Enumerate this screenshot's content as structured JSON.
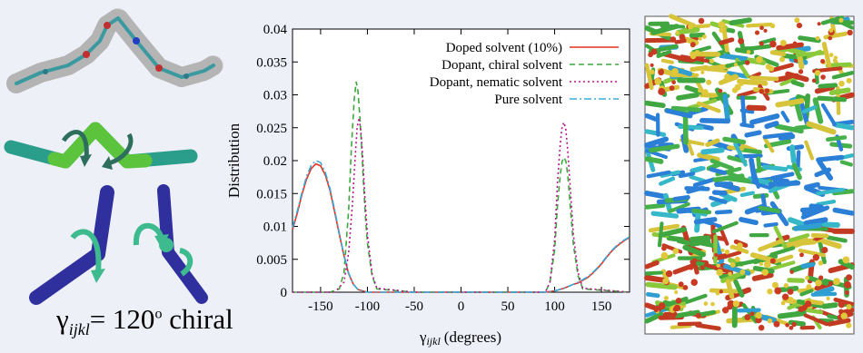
{
  "caption": {
    "gamma": "γ",
    "subscript": "ijkl",
    "equals": "= 120",
    "degree": "o",
    "word": "chiral"
  },
  "colors": {
    "molecule_green": "#5cc43c",
    "molecule_teal": "#2a9e8a",
    "chiral_blue": "#2f2f9e",
    "arrow_green": "#3dbb8e"
  },
  "chart_data": {
    "type": "line",
    "xlabel_main": "γ",
    "xlabel_sub": "ijkl",
    "xlabel_unit": "(degrees)",
    "ylabel": "Distribution",
    "xlim": [
      -180,
      180
    ],
    "ylim": [
      0,
      0.04
    ],
    "xticks": [
      -150,
      -100,
      -50,
      0,
      50,
      100,
      150
    ],
    "yticks": [
      0,
      0.005,
      0.01,
      0.015,
      0.02,
      0.025,
      0.03,
      0.035,
      0.04
    ],
    "yticklabels": [
      "0",
      "0.005",
      "0.01",
      "0.015",
      "0.02",
      "0.025",
      "0.03",
      "0.035",
      "0.04"
    ],
    "legend_position": "top-right",
    "series": [
      {
        "name": "Doped solvent (10%)",
        "color": "#e4321f",
        "dash": "",
        "x": [
          -180,
          -175,
          -170,
          -165,
          -160,
          -155,
          -150,
          -145,
          -140,
          -135,
          -130,
          -125,
          -120,
          -115,
          -110,
          -100,
          -50,
          0,
          50,
          90,
          95,
          100,
          105,
          110,
          115,
          120,
          125,
          130,
          135,
          140,
          145,
          150,
          155,
          160,
          165,
          170,
          175,
          180
        ],
        "y": [
          0.0095,
          0.012,
          0.0148,
          0.0172,
          0.0188,
          0.0195,
          0.0192,
          0.0178,
          0.0155,
          0.0122,
          0.0088,
          0.0055,
          0.0028,
          0.0012,
          0.0004,
          0,
          0,
          0,
          0,
          0,
          0.0001,
          0.0002,
          0.0004,
          0.0006,
          0.0009,
          0.0012,
          0.0014,
          0.0018,
          0.0022,
          0.0028,
          0.0035,
          0.0043,
          0.0052,
          0.0061,
          0.0068,
          0.0074,
          0.0079,
          0.0083
        ]
      },
      {
        "name": "Dopant, chiral solvent",
        "color": "#3ca83c",
        "dash": "6,4",
        "x": [
          -180,
          -140,
          -130,
          -125,
          -120,
          -117,
          -114,
          -112,
          -110,
          -108,
          -106,
          -104,
          -102,
          -100,
          -95,
          -90,
          -50,
          0,
          50,
          90,
          95,
          100,
          103,
          106,
          108,
          110,
          112,
          114,
          117,
          120,
          125,
          130,
          180
        ],
        "y": [
          0,
          0,
          0.0005,
          0.003,
          0.0125,
          0.0222,
          0.0294,
          0.032,
          0.0305,
          0.0265,
          0.0215,
          0.0162,
          0.0112,
          0.0075,
          0.0025,
          0.0005,
          0,
          0,
          0,
          0,
          0.0015,
          0.0065,
          0.013,
          0.0178,
          0.0199,
          0.0205,
          0.0199,
          0.0178,
          0.0125,
          0.0072,
          0.0025,
          0.0005,
          0
        ]
      },
      {
        "name": "Dopant, nematic solvent",
        "color": "#b5178e",
        "dash": "2,3",
        "x": [
          -180,
          -135,
          -125,
          -120,
          -116,
          -113,
          -111,
          -109,
          -107,
          -105,
          -103,
          -100,
          -95,
          -90,
          -50,
          0,
          50,
          90,
          95,
          100,
          103,
          106,
          108,
          110,
          112,
          114,
          117,
          120,
          125,
          130,
          180
        ],
        "y": [
          0,
          0,
          0.0015,
          0.006,
          0.0135,
          0.0205,
          0.025,
          0.0265,
          0.0245,
          0.0205,
          0.015,
          0.0088,
          0.0028,
          0.0006,
          0,
          0,
          0,
          0,
          0.0015,
          0.008,
          0.0165,
          0.0225,
          0.0252,
          0.0258,
          0.0247,
          0.0215,
          0.0152,
          0.0088,
          0.003,
          0.0006,
          0
        ]
      },
      {
        "name": "Pure solvent",
        "color": "#38a8d8",
        "dash": "8,3,2,3",
        "x": [
          -180,
          -175,
          -170,
          -165,
          -160,
          -155,
          -150,
          -145,
          -140,
          -135,
          -130,
          -125,
          -120,
          -115,
          -110,
          -100,
          -50,
          0,
          50,
          90,
          95,
          100,
          105,
          110,
          115,
          120,
          125,
          130,
          135,
          140,
          145,
          150,
          155,
          160,
          165,
          170,
          175,
          180
        ],
        "y": [
          0.0098,
          0.0123,
          0.0151,
          0.0176,
          0.0193,
          0.02,
          0.0197,
          0.0182,
          0.0158,
          0.0125,
          0.009,
          0.0056,
          0.0029,
          0.0012,
          0.0004,
          0,
          0,
          0,
          0,
          0,
          0.0001,
          0.0002,
          0.0004,
          0.0006,
          0.0009,
          0.0012,
          0.0015,
          0.0019,
          0.0023,
          0.0029,
          0.0036,
          0.0044,
          0.0053,
          0.0062,
          0.0069,
          0.0075,
          0.008,
          0.0084
        ]
      }
    ]
  }
}
